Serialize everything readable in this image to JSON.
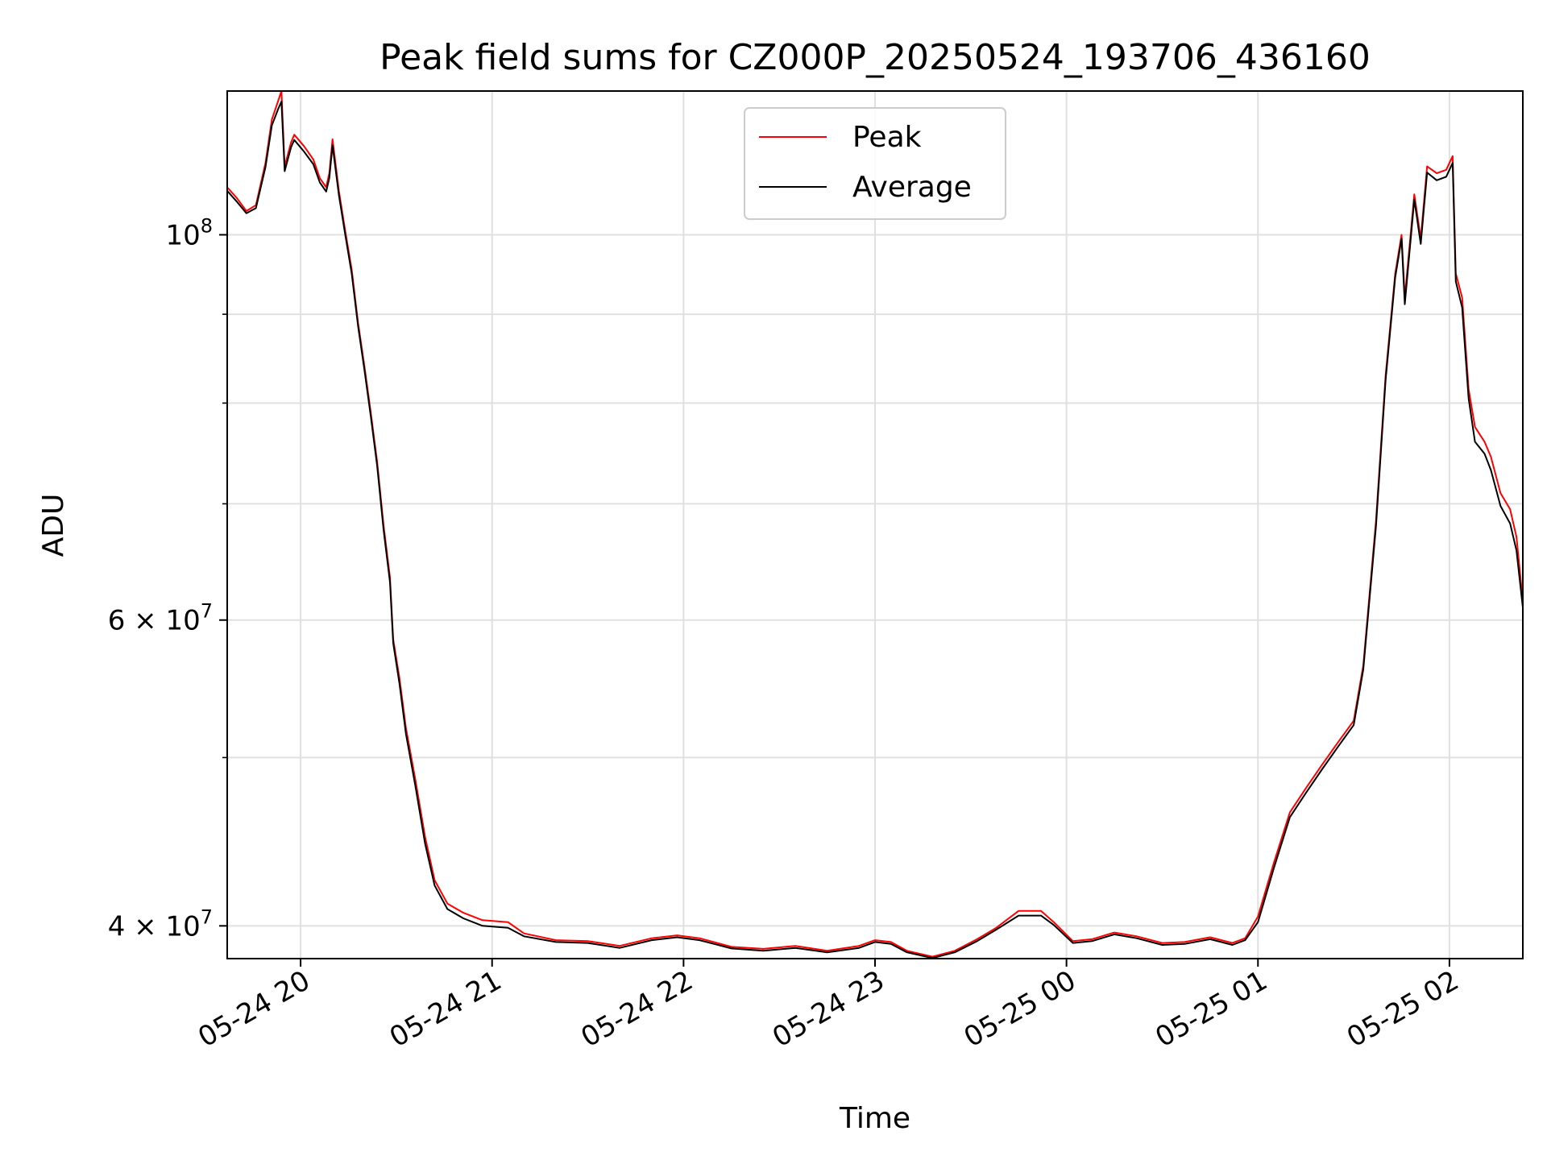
{
  "chart_data": {
    "type": "line",
    "title": "Peak field sums for CZ000P_20250524_193706_436160",
    "xlabel": "Time",
    "ylabel": "ADU",
    "yscale": "log",
    "grid": true,
    "legend_position": "top-center",
    "xlim": [
      "2025-05-24 19:37",
      "2025-05-25 02:23"
    ],
    "ylim": [
      38300000,
      121000000
    ],
    "x_ticks": [
      {
        "label": "05-24 20",
        "value": "2025-05-24 20:00"
      },
      {
        "label": "05-24 21",
        "value": "2025-05-24 21:00"
      },
      {
        "label": "05-24 22",
        "value": "2025-05-24 22:00"
      },
      {
        "label": "05-24 23",
        "value": "2025-05-24 23:00"
      },
      {
        "label": "05-25 00",
        "value": "2025-05-25 00:00"
      },
      {
        "label": "05-25 01",
        "value": "2025-05-25 01:00"
      },
      {
        "label": "05-25 02",
        "value": "2025-05-25 02:00"
      }
    ],
    "y_major_ticks": [
      {
        "label": "4 × 10^7",
        "value": 40000000
      },
      {
        "label": "6 × 10^7",
        "value": 60000000
      },
      {
        "label": "10^8",
        "value": 100000000
      }
    ],
    "y_minor_ticks": [
      50000000,
      70000000,
      80000000,
      90000000
    ],
    "series": [
      {
        "name": "Peak",
        "color": "#ff0000",
        "points": [
          [
            "2025-05-24 19:37",
            106500000
          ],
          [
            "2025-05-24 19:40",
            105000000
          ],
          [
            "2025-05-24 19:43",
            103200000
          ],
          [
            "2025-05-24 19:46",
            104000000
          ],
          [
            "2025-05-24 19:49",
            110000000
          ],
          [
            "2025-05-24 19:51",
            116500000
          ],
          [
            "2025-05-24 19:53",
            119500000
          ],
          [
            "2025-05-24 19:54",
            121000000
          ],
          [
            "2025-05-24 19:55",
            109500000
          ],
          [
            "2025-05-24 19:57",
            113000000
          ],
          [
            "2025-05-24 19:58",
            114200000
          ],
          [
            "2025-05-24 20:01",
            112500000
          ],
          [
            "2025-05-24 20:04",
            110500000
          ],
          [
            "2025-05-24 20:06",
            107800000
          ],
          [
            "2025-05-24 20:08",
            106500000
          ],
          [
            "2025-05-24 20:09",
            108500000
          ],
          [
            "2025-05-24 20:10",
            113500000
          ],
          [
            "2025-05-24 20:12",
            106000000
          ],
          [
            "2025-05-24 20:14",
            100500000
          ],
          [
            "2025-05-24 20:16",
            95500000
          ],
          [
            "2025-05-24 20:18",
            89000000
          ],
          [
            "2025-05-24 20:20",
            84000000
          ],
          [
            "2025-05-24 20:22",
            79000000
          ],
          [
            "2025-05-24 20:24",
            74000000
          ],
          [
            "2025-05-24 20:26",
            68000000
          ],
          [
            "2025-05-24 20:28",
            63500000
          ],
          [
            "2025-05-24 20:29",
            58500000
          ],
          [
            "2025-05-24 20:31",
            55500000
          ],
          [
            "2025-05-24 20:33",
            52000000
          ],
          [
            "2025-05-24 20:36",
            48500000
          ],
          [
            "2025-05-24 20:39",
            45000000
          ],
          [
            "2025-05-24 20:42",
            42500000
          ],
          [
            "2025-05-24 20:46",
            41200000
          ],
          [
            "2025-05-24 20:51",
            40700000
          ],
          [
            "2025-05-24 20:57",
            40300000
          ],
          [
            "2025-05-24 21:05",
            40200000
          ],
          [
            "2025-05-24 21:10",
            39600000
          ],
          [
            "2025-05-24 21:20",
            39250000
          ],
          [
            "2025-05-24 21:30",
            39200000
          ],
          [
            "2025-05-24 21:40",
            38950000
          ],
          [
            "2025-05-24 21:50",
            39350000
          ],
          [
            "2025-05-24 21:58",
            39500000
          ],
          [
            "2025-05-24 22:05",
            39350000
          ],
          [
            "2025-05-24 22:15",
            38900000
          ],
          [
            "2025-05-24 22:25",
            38800000
          ],
          [
            "2025-05-24 22:35",
            38950000
          ],
          [
            "2025-05-24 22:45",
            38700000
          ],
          [
            "2025-05-24 22:55",
            38950000
          ],
          [
            "2025-05-24 23:00",
            39250000
          ],
          [
            "2025-05-24 23:05",
            39150000
          ],
          [
            "2025-05-24 23:10",
            38700000
          ],
          [
            "2025-05-24 23:18",
            38400000
          ],
          [
            "2025-05-24 23:25",
            38700000
          ],
          [
            "2025-05-24 23:32",
            39300000
          ],
          [
            "2025-05-24 23:38",
            39900000
          ],
          [
            "2025-05-24 23:45",
            40800000
          ],
          [
            "2025-05-24 23:52",
            40800000
          ],
          [
            "2025-05-24 23:56",
            40200000
          ],
          [
            "2025-05-25 00:02",
            39200000
          ],
          [
            "2025-05-25 00:08",
            39300000
          ],
          [
            "2025-05-25 00:15",
            39650000
          ],
          [
            "2025-05-25 00:22",
            39450000
          ],
          [
            "2025-05-25 00:30",
            39100000
          ],
          [
            "2025-05-25 00:37",
            39150000
          ],
          [
            "2025-05-25 00:45",
            39400000
          ],
          [
            "2025-05-25 00:52",
            39100000
          ],
          [
            "2025-05-25 00:56",
            39350000
          ],
          [
            "2025-05-25 01:00",
            40500000
          ],
          [
            "2025-05-25 01:05",
            43500000
          ],
          [
            "2025-05-25 01:10",
            46500000
          ],
          [
            "2025-05-25 01:15",
            48000000
          ],
          [
            "2025-05-25 01:20",
            49500000
          ],
          [
            "2025-05-25 01:25",
            51000000
          ],
          [
            "2025-05-25 01:30",
            52500000
          ],
          [
            "2025-05-25 01:33",
            56500000
          ],
          [
            "2025-05-25 01:37",
            68500000
          ],
          [
            "2025-05-25 01:40",
            83000000
          ],
          [
            "2025-05-25 01:43",
            95000000
          ],
          [
            "2025-05-25 01:45",
            100000000
          ],
          [
            "2025-05-25 01:46",
            92000000
          ],
          [
            "2025-05-25 01:49",
            105500000
          ],
          [
            "2025-05-25 01:51",
            99500000
          ],
          [
            "2025-05-25 01:53",
            109500000
          ],
          [
            "2025-05-25 01:56",
            108500000
          ],
          [
            "2025-05-25 01:59",
            109000000
          ],
          [
            "2025-05-25 02:01",
            111000000
          ],
          [
            "2025-05-25 02:02",
            95000000
          ],
          [
            "2025-05-25 02:04",
            92000000
          ],
          [
            "2025-05-25 02:06",
            81500000
          ],
          [
            "2025-05-25 02:08",
            77500000
          ],
          [
            "2025-05-25 02:11",
            76000000
          ],
          [
            "2025-05-25 02:13",
            74500000
          ],
          [
            "2025-05-25 02:16",
            71000000
          ],
          [
            "2025-05-25 02:19",
            69500000
          ],
          [
            "2025-05-25 02:21",
            67000000
          ],
          [
            "2025-05-25 02:23",
            61500000
          ]
        ]
      },
      {
        "name": "Average",
        "color": "#000000",
        "points": [
          [
            "2025-05-24 19:37",
            106000000
          ],
          [
            "2025-05-24 19:40",
            104500000
          ],
          [
            "2025-05-24 19:43",
            102900000
          ],
          [
            "2025-05-24 19:46",
            103600000
          ],
          [
            "2025-05-24 19:49",
            109400000
          ],
          [
            "2025-05-24 19:51",
            115600000
          ],
          [
            "2025-05-24 19:53",
            118200000
          ],
          [
            "2025-05-24 19:54",
            119300000
          ],
          [
            "2025-05-24 19:55",
            108800000
          ],
          [
            "2025-05-24 19:57",
            112300000
          ],
          [
            "2025-05-24 19:58",
            113400000
          ],
          [
            "2025-05-24 20:01",
            111700000
          ],
          [
            "2025-05-24 20:04",
            109800000
          ],
          [
            "2025-05-24 20:06",
            107200000
          ],
          [
            "2025-05-24 20:08",
            105900000
          ],
          [
            "2025-05-24 20:09",
            107800000
          ],
          [
            "2025-05-24 20:10",
            112600000
          ],
          [
            "2025-05-24 20:12",
            105400000
          ],
          [
            "2025-05-24 20:14",
            100000000
          ],
          [
            "2025-05-24 20:16",
            95000000
          ],
          [
            "2025-05-24 20:18",
            88600000
          ],
          [
            "2025-05-24 20:20",
            83600000
          ],
          [
            "2025-05-24 20:22",
            78600000
          ],
          [
            "2025-05-24 20:24",
            73600000
          ],
          [
            "2025-05-24 20:26",
            67600000
          ],
          [
            "2025-05-24 20:28",
            63100000
          ],
          [
            "2025-05-24 20:29",
            58200000
          ],
          [
            "2025-05-24 20:31",
            55100000
          ],
          [
            "2025-05-24 20:33",
            51600000
          ],
          [
            "2025-05-24 20:36",
            48100000
          ],
          [
            "2025-05-24 20:39",
            44600000
          ],
          [
            "2025-05-24 20:42",
            42200000
          ],
          [
            "2025-05-24 20:46",
            40900000
          ],
          [
            "2025-05-24 20:51",
            40400000
          ],
          [
            "2025-05-24 20:57",
            40000000
          ],
          [
            "2025-05-24 21:05",
            39900000
          ],
          [
            "2025-05-24 21:10",
            39450000
          ],
          [
            "2025-05-24 21:20",
            39150000
          ],
          [
            "2025-05-24 21:30",
            39100000
          ],
          [
            "2025-05-24 21:40",
            38850000
          ],
          [
            "2025-05-24 21:50",
            39250000
          ],
          [
            "2025-05-24 21:58",
            39400000
          ],
          [
            "2025-05-24 22:05",
            39250000
          ],
          [
            "2025-05-24 22:15",
            38820000
          ],
          [
            "2025-05-24 22:25",
            38700000
          ],
          [
            "2025-05-24 22:35",
            38850000
          ],
          [
            "2025-05-24 22:45",
            38620000
          ],
          [
            "2025-05-24 22:55",
            38850000
          ],
          [
            "2025-05-24 23:00",
            39150000
          ],
          [
            "2025-05-24 23:05",
            39050000
          ],
          [
            "2025-05-24 23:10",
            38620000
          ],
          [
            "2025-05-24 23:18",
            38330000
          ],
          [
            "2025-05-24 23:25",
            38620000
          ],
          [
            "2025-05-24 23:32",
            39200000
          ],
          [
            "2025-05-24 23:38",
            39800000
          ],
          [
            "2025-05-24 23:45",
            40550000
          ],
          [
            "2025-05-24 23:52",
            40550000
          ],
          [
            "2025-05-24 23:56",
            40050000
          ],
          [
            "2025-05-25 00:02",
            39100000
          ],
          [
            "2025-05-25 00:08",
            39200000
          ],
          [
            "2025-05-25 00:15",
            39550000
          ],
          [
            "2025-05-25 00:22",
            39350000
          ],
          [
            "2025-05-25 00:30",
            39000000
          ],
          [
            "2025-05-25 00:37",
            39050000
          ],
          [
            "2025-05-25 00:45",
            39300000
          ],
          [
            "2025-05-25 00:52",
            39000000
          ],
          [
            "2025-05-25 00:56",
            39250000
          ],
          [
            "2025-05-25 01:00",
            40200000
          ],
          [
            "2025-05-25 01:05",
            43200000
          ],
          [
            "2025-05-25 01:10",
            46200000
          ],
          [
            "2025-05-25 01:15",
            47700000
          ],
          [
            "2025-05-25 01:20",
            49200000
          ],
          [
            "2025-05-25 01:25",
            50700000
          ],
          [
            "2025-05-25 01:30",
            52200000
          ],
          [
            "2025-05-25 01:33",
            56200000
          ],
          [
            "2025-05-25 01:37",
            68000000
          ],
          [
            "2025-05-25 01:40",
            82500000
          ],
          [
            "2025-05-25 01:43",
            94500000
          ],
          [
            "2025-05-25 01:45",
            99500000
          ],
          [
            "2025-05-25 01:46",
            91200000
          ],
          [
            "2025-05-25 01:49",
            104800000
          ],
          [
            "2025-05-25 01:51",
            98800000
          ],
          [
            "2025-05-25 01:53",
            108600000
          ],
          [
            "2025-05-25 01:56",
            107500000
          ],
          [
            "2025-05-25 01:59",
            108000000
          ],
          [
            "2025-05-25 02:01",
            110000000
          ],
          [
            "2025-05-25 02:02",
            94000000
          ],
          [
            "2025-05-25 02:04",
            90800000
          ],
          [
            "2025-05-25 02:06",
            80500000
          ],
          [
            "2025-05-25 02:08",
            76000000
          ],
          [
            "2025-05-25 02:11",
            74800000
          ],
          [
            "2025-05-25 02:13",
            73200000
          ],
          [
            "2025-05-25 02:16",
            69800000
          ],
          [
            "2025-05-25 02:19",
            68200000
          ],
          [
            "2025-05-25 02:21",
            65800000
          ],
          [
            "2025-05-25 02:23",
            61000000
          ]
        ]
      }
    ]
  }
}
